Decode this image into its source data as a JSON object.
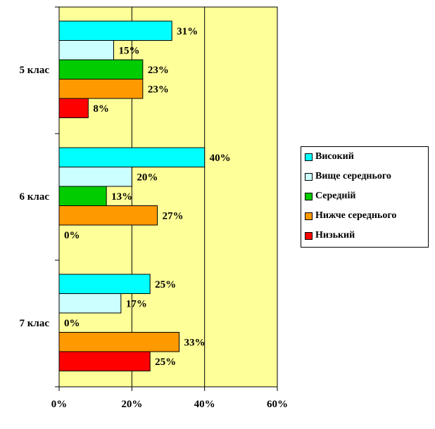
{
  "chart_data": {
    "type": "bar",
    "orientation": "horizontal",
    "categories": [
      "5 клас",
      "6 клас",
      "7 клас"
    ],
    "series": [
      {
        "name": "Високий",
        "color": "#00FFFF",
        "values": [
          31,
          40,
          25
        ],
        "labels": [
          "31%",
          "40%",
          "25%"
        ]
      },
      {
        "name": "Вище середнього",
        "color": "#CCFFFF",
        "values": [
          15,
          20,
          17
        ],
        "labels": [
          "15%",
          "20%",
          "17%"
        ]
      },
      {
        "name": "Середній",
        "color": "#00CC00",
        "values": [
          23,
          13,
          0
        ],
        "labels": [
          "23%",
          "13%",
          "0%"
        ]
      },
      {
        "name": "Нижче середнього",
        "color": "#FF9900",
        "values": [
          23,
          27,
          33
        ],
        "labels": [
          "23%",
          "27%",
          "33%"
        ]
      },
      {
        "name": "Низький",
        "color": "#FF0000",
        "values": [
          8,
          0,
          25
        ],
        "labels": [
          "8%",
          "0%",
          "25%"
        ]
      }
    ],
    "xlim": [
      0,
      60
    ],
    "xticks": [
      "0%",
      "20%",
      "40%",
      "60%"
    ],
    "grid": true,
    "plot_background": "#FFFF99",
    "legend_position": "right"
  }
}
